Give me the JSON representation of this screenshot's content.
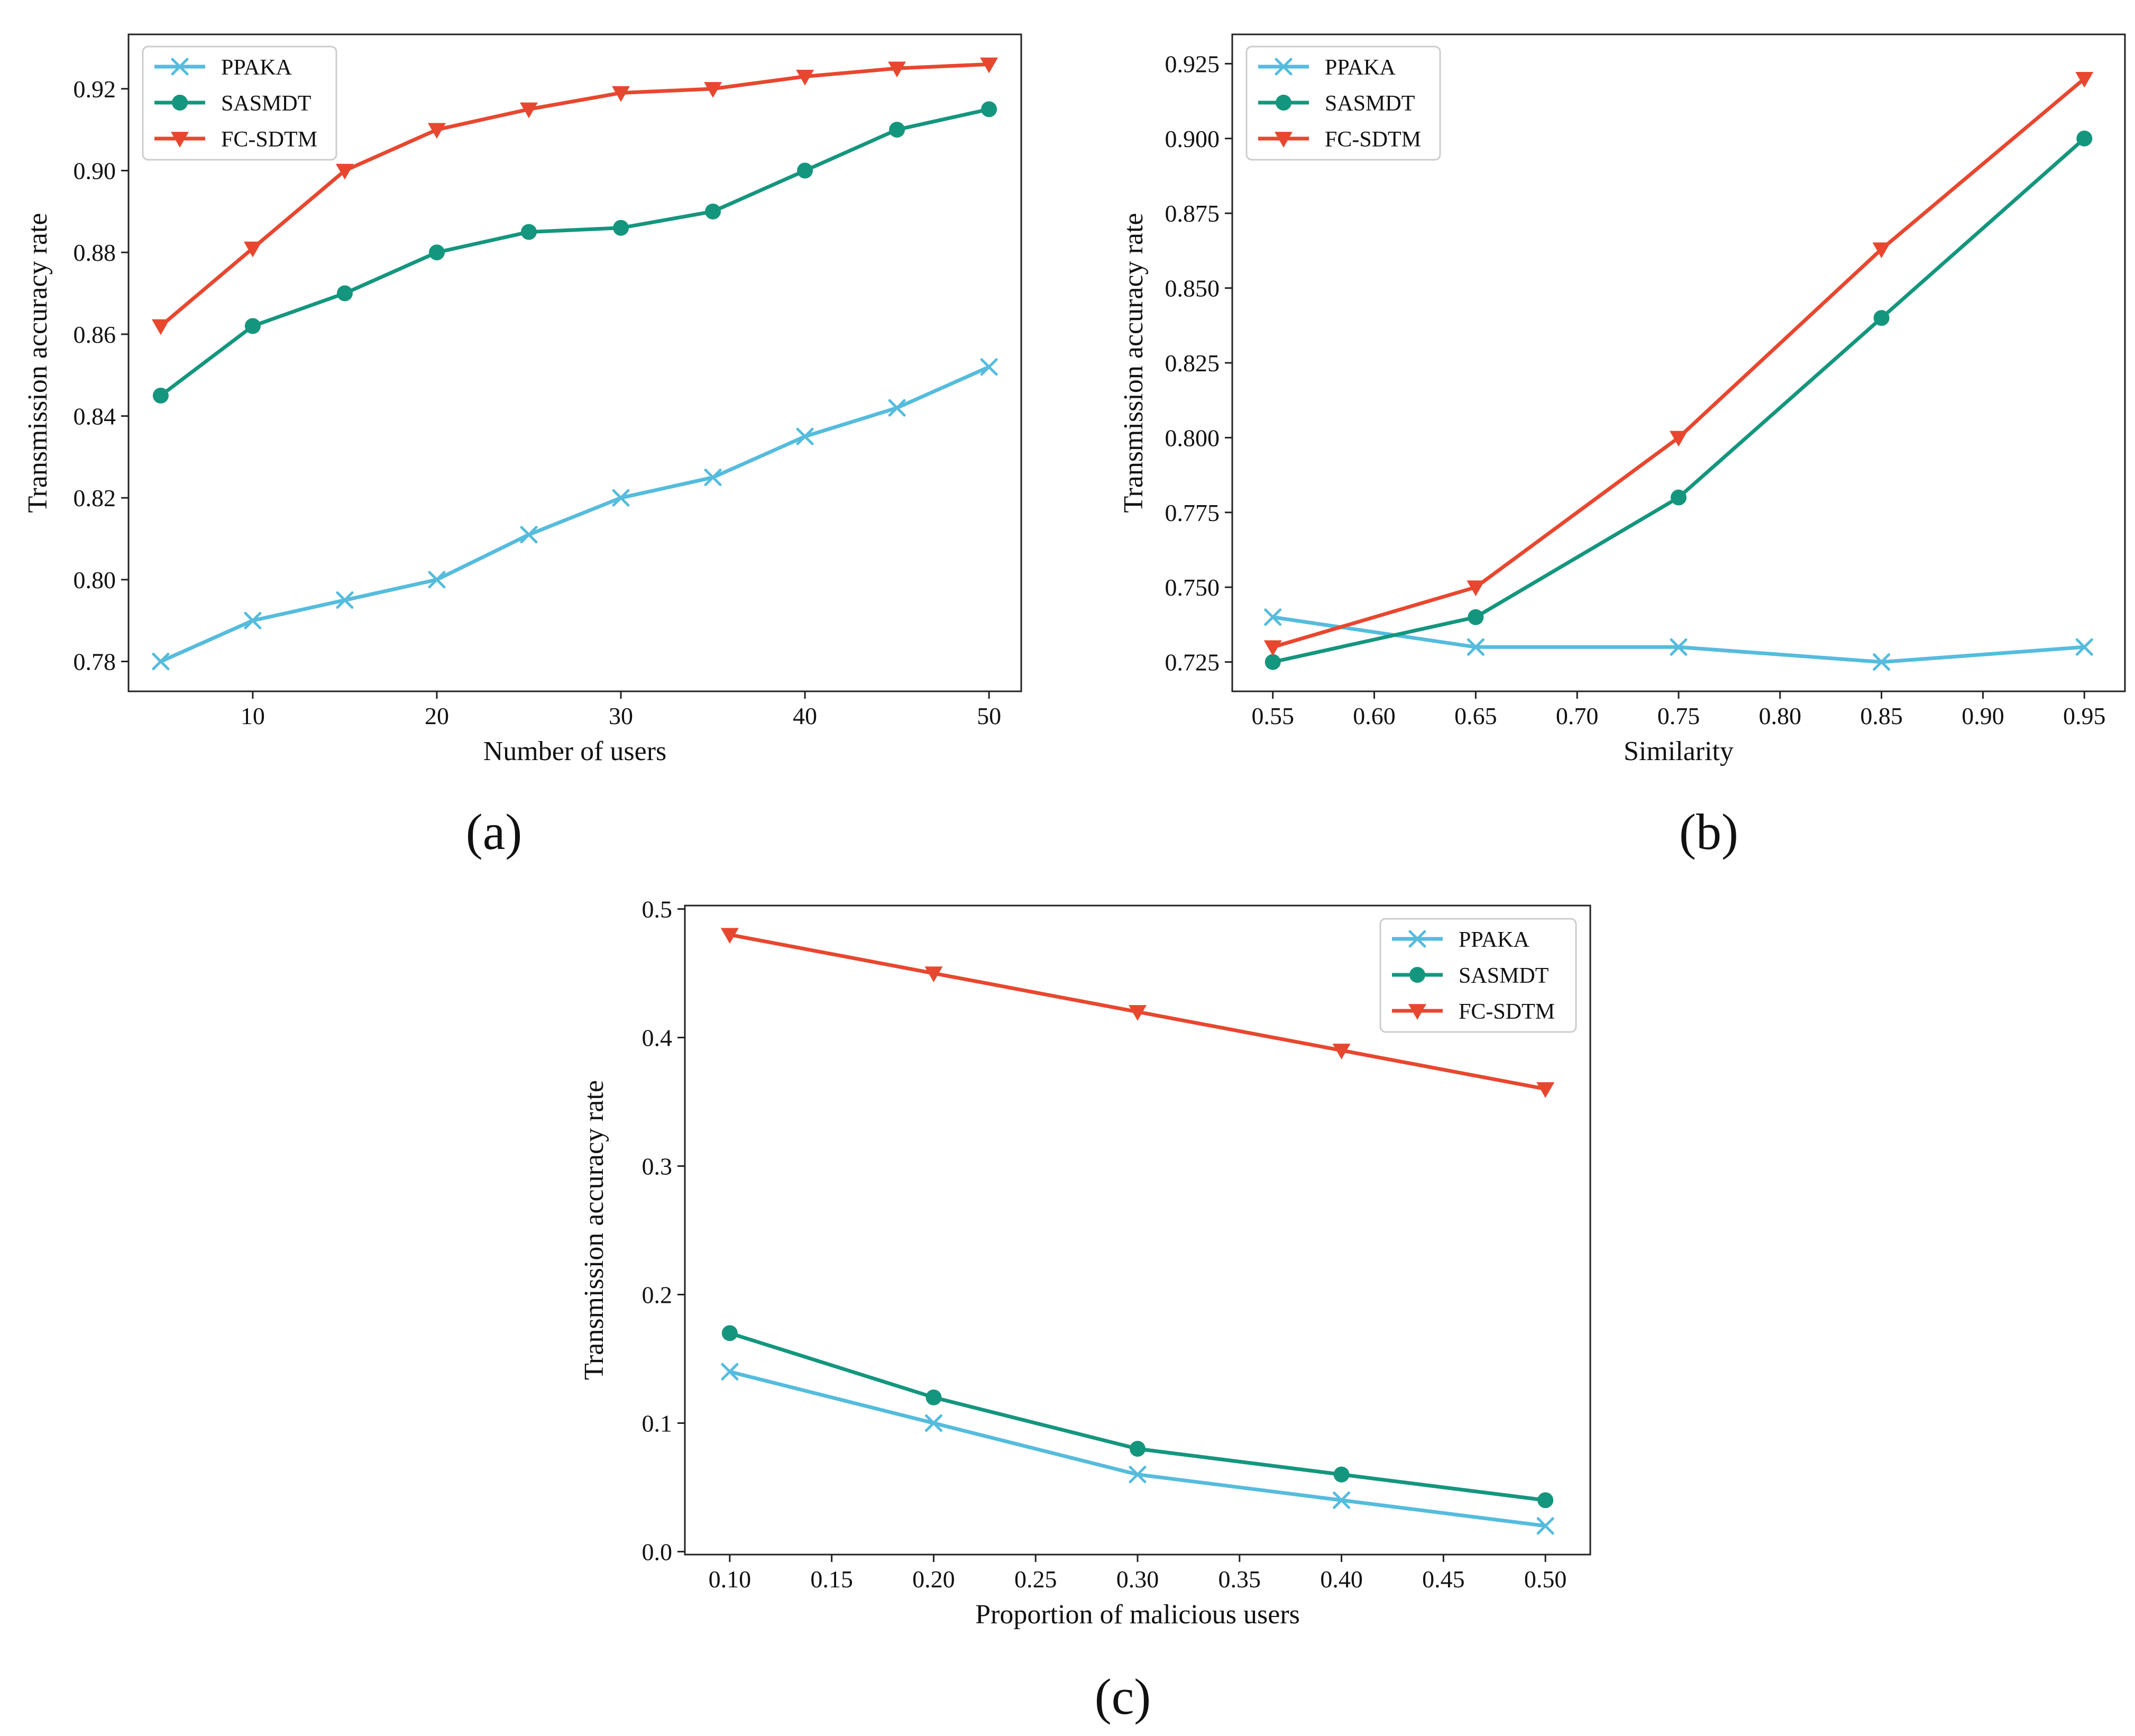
{
  "colors": {
    "ppaka": "#55BCDD",
    "sasmdt": "#14967E",
    "fcsdtm": "#E8472F"
  },
  "chart_data": [
    {
      "type": "line",
      "panel_label": "(a)",
      "title": "",
      "xlabel": "Number of users",
      "ylabel": "Transmission accuracy rate",
      "xlim": [
        3.25,
        51.75
      ],
      "ylim": [
        0.7727,
        0.9333
      ],
      "xticks": [
        10,
        20,
        30,
        40,
        50
      ],
      "xtick_labels": [
        "10",
        "20",
        "30",
        "40",
        "50"
      ],
      "yticks": [
        0.78,
        0.8,
        0.82,
        0.84,
        0.86,
        0.88,
        0.9,
        0.92
      ],
      "ytick_labels": [
        "0.78",
        "0.80",
        "0.82",
        "0.84",
        "0.86",
        "0.88",
        "0.90",
        "0.92"
      ],
      "legend": "top-left",
      "x": [
        5,
        10,
        15,
        20,
        25,
        30,
        35,
        40,
        45,
        50
      ],
      "series": [
        {
          "name": "PPAKA",
          "marker": "x",
          "color_key": "ppaka",
          "values": [
            0.78,
            0.79,
            0.795,
            0.8,
            0.811,
            0.82,
            0.825,
            0.835,
            0.842,
            0.852
          ]
        },
        {
          "name": "SASMDT",
          "marker": "circle",
          "color_key": "sasmdt",
          "values": [
            0.845,
            0.862,
            0.87,
            0.88,
            0.885,
            0.886,
            0.89,
            0.9,
            0.91,
            0.915
          ]
        },
        {
          "name": "FC-SDTM",
          "marker": "triangle-down",
          "color_key": "fcsdtm",
          "values": [
            0.862,
            0.881,
            0.9,
            0.91,
            0.915,
            0.919,
            0.92,
            0.923,
            0.925,
            0.926
          ]
        }
      ]
    },
    {
      "type": "line",
      "panel_label": "(b)",
      "title": "",
      "xlabel": "Similarity",
      "ylabel": "Transmission accuracy rate",
      "xlim": [
        0.53,
        0.97
      ],
      "ylim": [
        0.7152,
        0.9348
      ],
      "xticks": [
        0.55,
        0.6,
        0.65,
        0.7,
        0.75,
        0.8,
        0.85,
        0.9,
        0.95
      ],
      "xtick_labels": [
        "0.55",
        "0.60",
        "0.65",
        "0.70",
        "0.75",
        "0.80",
        "0.85",
        "0.90",
        "0.95"
      ],
      "yticks": [
        0.725,
        0.75,
        0.775,
        0.8,
        0.825,
        0.85,
        0.875,
        0.9,
        0.925
      ],
      "ytick_labels": [
        "0.725",
        "0.750",
        "0.775",
        "0.800",
        "0.825",
        "0.850",
        "0.875",
        "0.900",
        "0.925"
      ],
      "legend": "top-left",
      "x": [
        0.55,
        0.65,
        0.75,
        0.85,
        0.95
      ],
      "series": [
        {
          "name": "PPAKA",
          "marker": "x",
          "color_key": "ppaka",
          "values": [
            0.74,
            0.73,
            0.73,
            0.725,
            0.73
          ]
        },
        {
          "name": "SASMDT",
          "marker": "circle",
          "color_key": "sasmdt",
          "values": [
            0.725,
            0.74,
            0.78,
            0.84,
            0.9
          ]
        },
        {
          "name": "FC-SDTM",
          "marker": "triangle-down",
          "color_key": "fcsdtm",
          "values": [
            0.73,
            0.75,
            0.8,
            0.863,
            0.92
          ]
        }
      ]
    },
    {
      "type": "line",
      "panel_label": "(c)",
      "title": "",
      "xlabel": "Proportion of malicious users",
      "ylabel": "Transmission accuracy rate",
      "xlim": [
        0.078,
        0.522
      ],
      "ylim": [
        -0.0023,
        0.5027
      ],
      "xticks": [
        0.1,
        0.15,
        0.2,
        0.25,
        0.3,
        0.35,
        0.4,
        0.45,
        0.5
      ],
      "xtick_labels": [
        "0.10",
        "0.15",
        "0.20",
        "0.25",
        "0.30",
        "0.35",
        "0.40",
        "0.45",
        "0.50"
      ],
      "yticks": [
        0.0,
        0.1,
        0.2,
        0.3,
        0.4,
        0.5
      ],
      "ytick_labels": [
        "0.0",
        "0.1",
        "0.2",
        "0.3",
        "0.4",
        "0.5"
      ],
      "legend": "top-right",
      "x": [
        0.1,
        0.2,
        0.3,
        0.4,
        0.5
      ],
      "series": [
        {
          "name": "PPAKA",
          "marker": "x",
          "color_key": "ppaka",
          "values": [
            0.14,
            0.1,
            0.06,
            0.04,
            0.02
          ]
        },
        {
          "name": "SASMDT",
          "marker": "circle",
          "color_key": "sasmdt",
          "values": [
            0.17,
            0.12,
            0.08,
            0.06,
            0.04
          ]
        },
        {
          "name": "FC-SDTM",
          "marker": "triangle-down",
          "color_key": "fcsdtm",
          "values": [
            0.48,
            0.45,
            0.42,
            0.39,
            0.36
          ]
        }
      ]
    }
  ]
}
